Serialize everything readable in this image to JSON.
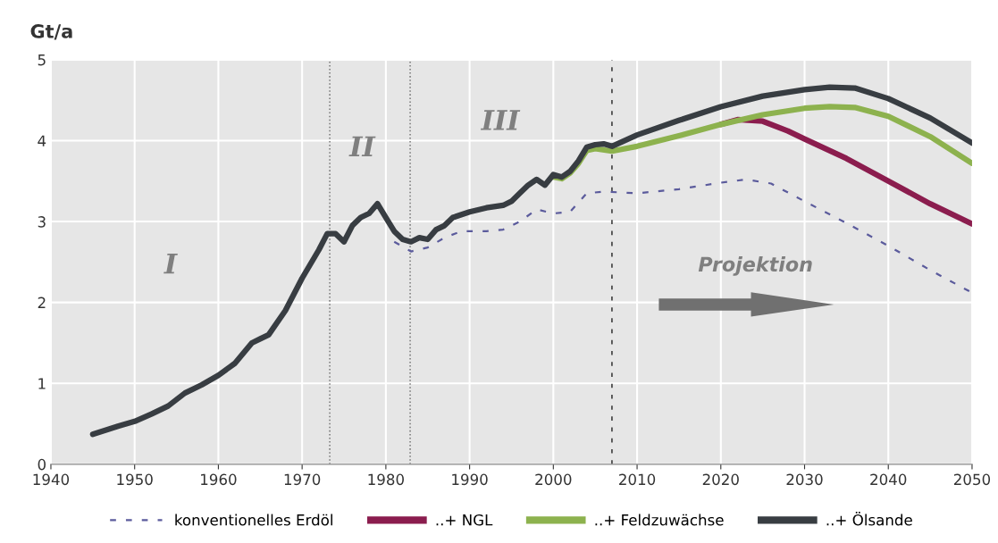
{
  "chart_data": {
    "type": "line",
    "ylabel": "Gt/a",
    "xlim": [
      1940,
      2050
    ],
    "xticks": [
      1940,
      1950,
      1960,
      1970,
      1980,
      1990,
      2000,
      2010,
      2020,
      2030,
      2040,
      2050
    ],
    "ylim": [
      0,
      5
    ],
    "yticks": [
      0,
      1,
      2,
      3,
      4,
      5
    ],
    "grid": true,
    "legend": "bottom",
    "series": [
      {
        "name": "konventionelles Erdöl",
        "color": "#5b5b9c",
        "line_style": "dashed",
        "x": [
          1981,
          1983,
          1985,
          1987,
          1989,
          1992,
          1994,
          1996,
          1998,
          2000,
          2002,
          2004,
          2006,
          2010,
          2015,
          2020,
          2023,
          2026,
          2030,
          2035,
          2040,
          2045,
          2050
        ],
        "values": [
          2.75,
          2.63,
          2.68,
          2.8,
          2.88,
          2.88,
          2.9,
          3.0,
          3.15,
          3.1,
          3.12,
          3.35,
          3.37,
          3.35,
          3.4,
          3.48,
          3.52,
          3.47,
          3.25,
          2.98,
          2.7,
          2.4,
          2.12
        ]
      },
      {
        "name": "..+ NGL",
        "color": "#8b1d4e",
        "line_style": "solid",
        "x": [
          2020,
          2022,
          2025,
          2028,
          2030,
          2035,
          2040,
          2045,
          2050
        ],
        "values": [
          4.2,
          4.26,
          4.24,
          4.12,
          4.02,
          3.78,
          3.5,
          3.22,
          2.97
        ]
      },
      {
        "name": "..+ Feldzuwächse",
        "color": "#8db24e",
        "line_style": "solid",
        "x": [
          2000,
          2001,
          2002,
          2003,
          2004,
          2005,
          2007,
          2010,
          2015,
          2020,
          2025,
          2030,
          2033,
          2036,
          2040,
          2045,
          2050
        ],
        "values": [
          3.55,
          3.53,
          3.6,
          3.72,
          3.88,
          3.9,
          3.87,
          3.93,
          4.06,
          4.2,
          4.32,
          4.4,
          4.42,
          4.41,
          4.3,
          4.05,
          3.72
        ]
      },
      {
        "name": "..+ Ölsande",
        "color": "#383d42",
        "line_style": "solid",
        "x": [
          1945,
          1948,
          1950,
          1952,
          1954,
          1956,
          1958,
          1960,
          1962,
          1964,
          1965,
          1966,
          1968,
          1970,
          1972,
          1973,
          1974,
          1975,
          1976,
          1977,
          1978,
          1979,
          1980,
          1981,
          1982,
          1983,
          1984,
          1985,
          1986,
          1987,
          1988,
          1990,
          1992,
          1994,
          1995,
          1996,
          1997,
          1998,
          1999,
          2000,
          2001,
          2002,
          2003,
          2004,
          2005,
          2006,
          2007,
          2010,
          2015,
          2020,
          2025,
          2030,
          2033,
          2036,
          2040,
          2045,
          2050
        ],
        "values": [
          0.37,
          0.47,
          0.53,
          0.62,
          0.72,
          0.88,
          0.98,
          1.1,
          1.25,
          1.5,
          1.55,
          1.6,
          1.9,
          2.3,
          2.65,
          2.85,
          2.85,
          2.75,
          2.95,
          3.05,
          3.1,
          3.22,
          3.05,
          2.88,
          2.78,
          2.75,
          2.8,
          2.78,
          2.9,
          2.95,
          3.05,
          3.12,
          3.17,
          3.2,
          3.25,
          3.35,
          3.45,
          3.52,
          3.45,
          3.58,
          3.55,
          3.62,
          3.75,
          3.92,
          3.95,
          3.96,
          3.93,
          4.07,
          4.25,
          4.42,
          4.55,
          4.63,
          4.66,
          4.65,
          4.52,
          4.28,
          3.97
        ]
      }
    ],
    "ref_lines": [
      {
        "axis": "x",
        "value": 1973.3,
        "color": "#777777",
        "line_style": "dotted"
      },
      {
        "axis": "x",
        "value": 1982.9,
        "color": "#777777",
        "line_style": "dotted"
      },
      {
        "axis": "x",
        "value": 2007,
        "color": "#333333",
        "line_style": "dashed"
      }
    ],
    "annotations": [
      "I",
      "II",
      "III",
      "Projektion"
    ]
  }
}
